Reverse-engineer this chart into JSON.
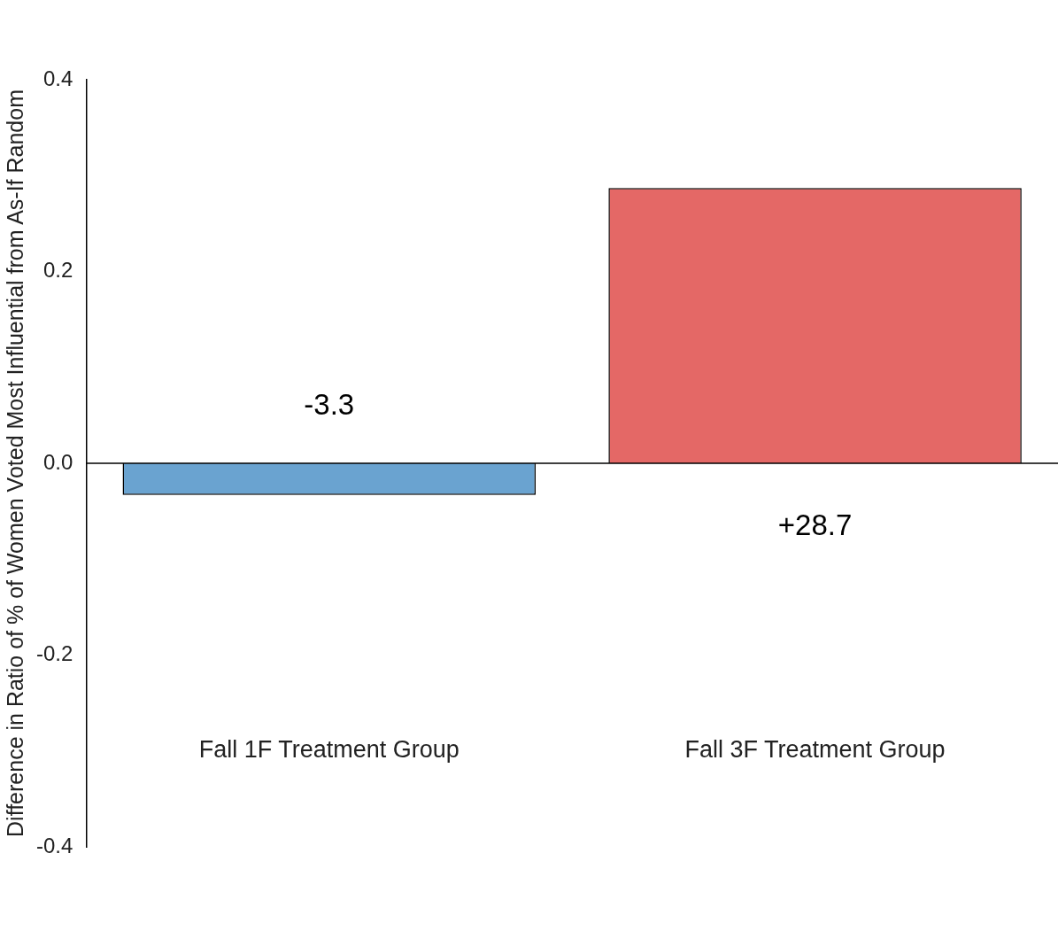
{
  "chart_data": {
    "type": "bar",
    "ylabel": "Difference in Ratio of % of Women Voted Most Influential from As-If Random",
    "categories": [
      "Fall 1F Treatment Group",
      "Fall 3F Treatment Group"
    ],
    "values": [
      -0.033,
      0.287
    ],
    "colors": [
      "#6aa3d0",
      "#e46866"
    ],
    "annotations": [
      "-3.3",
      "+28.7"
    ],
    "ylim": [
      -0.4,
      0.4
    ],
    "yticks": [
      {
        "value": -0.4,
        "label": "-0.4"
      },
      {
        "value": -0.2,
        "label": "-0.2"
      },
      {
        "value": 0,
        "label": "0.0"
      },
      {
        "value": 0.2,
        "label": "0.2"
      },
      {
        "value": 0.4,
        "label": "0.4"
      }
    ],
    "ref_lines": [
      {
        "axis": "y",
        "value": 0,
        "color": "#000000"
      }
    ],
    "grid": false,
    "legend": false
  }
}
